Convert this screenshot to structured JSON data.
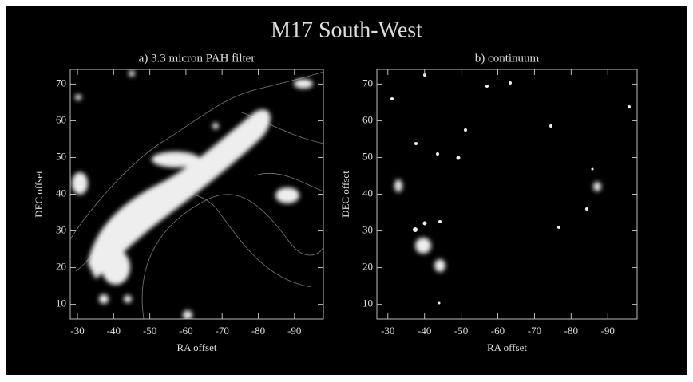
{
  "title": "M17 South-West",
  "chart_data": [
    {
      "type": "image",
      "title": "a) 3.3 micron PAH filter",
      "x_label": "RA offset",
      "y_label": "DEC offset",
      "xlim": [
        -28,
        -98
      ],
      "xticks": [
        -30,
        -40,
        -50,
        -60,
        -70,
        -80,
        -90
      ],
      "ylim": [
        6,
        74
      ],
      "yticks": [
        10,
        20,
        30,
        40,
        50,
        60,
        70
      ]
    },
    {
      "type": "image",
      "title": "b) continuum",
      "x_label": "RA offset",
      "y_label": "DEC offset",
      "xlim": [
        -27,
        -98
      ],
      "xticks": [
        -30,
        -40,
        -50,
        -60,
        -70,
        -80,
        -90
      ],
      "ylim": [
        6,
        74
      ],
      "yticks": [
        10,
        20,
        30,
        40,
        50,
        60,
        70
      ]
    }
  ]
}
